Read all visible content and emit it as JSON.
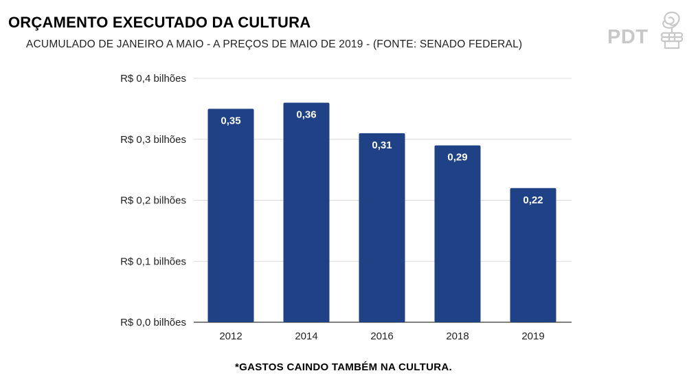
{
  "header": {
    "title": "ORÇAMENTO EXECUTADO DA CULTURA",
    "subtitle": "ACUMULADO DE JANEIRO A MAIO - A PREÇOS DE MAIO DE 2019 - (FONTE: SENADO FEDERAL)"
  },
  "logo": {
    "text": "PDT",
    "icon": "rose-fist-icon",
    "color": "#c8c8c8"
  },
  "chart_data": {
    "type": "bar",
    "title": "ORÇAMENTO EXECUTADO DA CULTURA",
    "subtitle": "ACUMULADO DE JANEIRO A MAIO - A PREÇOS DE MAIO DE 2019 - (FONTE: SENADO FEDERAL)",
    "categories": [
      "2012",
      "2014",
      "2016",
      "2018",
      "2019"
    ],
    "values": [
      0.35,
      0.36,
      0.31,
      0.29,
      0.22
    ],
    "data_labels": [
      "0,35",
      "0,36",
      "0,31",
      "0,29",
      "0,22"
    ],
    "ylim": [
      0,
      0.4
    ],
    "yticks": [
      {
        "value": 0.0,
        "label": "R$ 0,0 bilhões"
      },
      {
        "value": 0.1,
        "label": "R$ 0,1 bilhões"
      },
      {
        "value": 0.2,
        "label": "R$ 0,2 bilhões"
      },
      {
        "value": 0.3,
        "label": "R$ 0,3 bilhões"
      },
      {
        "value": 0.4,
        "label": "R$ 0,4 bilhões"
      }
    ],
    "grid": true,
    "legend": "none",
    "bar_color": "#1f4287",
    "label_color": "#ffffff",
    "xlabel": "",
    "ylabel": ""
  },
  "footnote": "*GASTOS CAINDO TAMBÉM NA CULTURA."
}
